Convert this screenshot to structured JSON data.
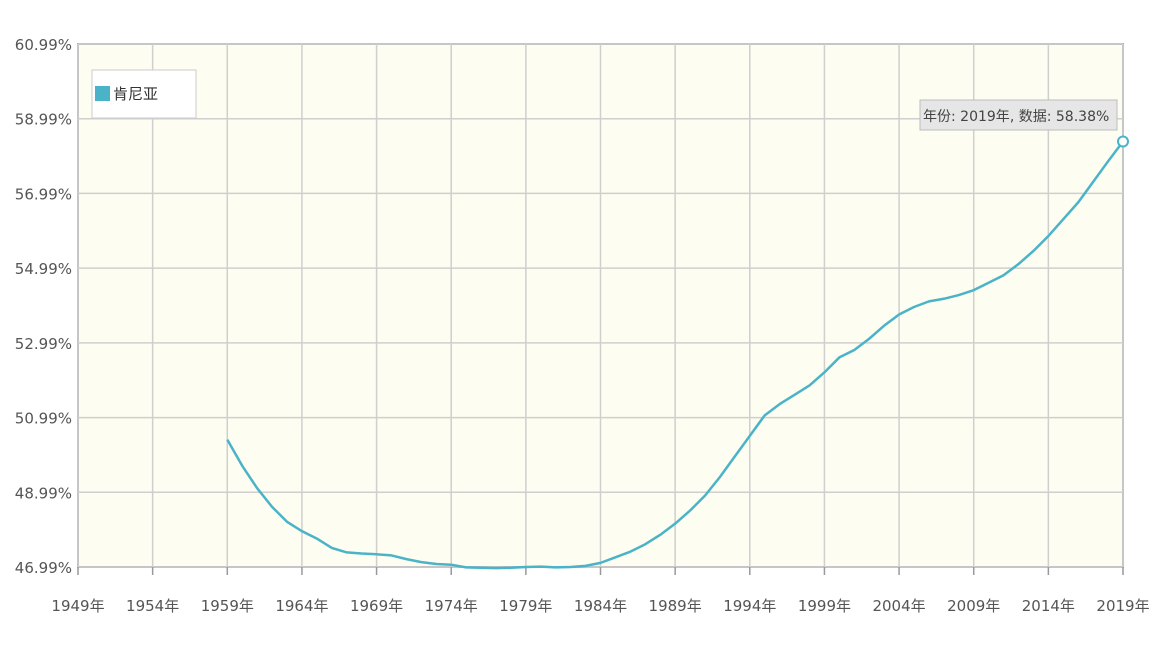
{
  "chart_data": {
    "type": "line",
    "x_unit": "年",
    "x_tick_labels": [
      "1949年",
      "1954年",
      "1959年",
      "1964年",
      "1969年",
      "1974年",
      "1979年",
      "1984年",
      "1989年",
      "1994年",
      "1999年",
      "2004年",
      "2009年",
      "2014年",
      "2019年"
    ],
    "y_tick_labels": [
      "46.99%",
      "48.99%",
      "50.99%",
      "52.99%",
      "54.99%",
      "56.99%",
      "58.99%",
      "60.99%"
    ],
    "xlim": [
      1949,
      2019
    ],
    "ylim": [
      46.99,
      60.99
    ],
    "grid": true,
    "legend": {
      "position": "top-left",
      "entries": [
        "肯尼亚"
      ]
    },
    "series": [
      {
        "name": "肯尼亚",
        "color": "#4bb3c8",
        "x": [
          1959,
          1960,
          1961,
          1962,
          1963,
          1964,
          1965,
          1966,
          1967,
          1968,
          1969,
          1970,
          1971,
          1972,
          1973,
          1974,
          1975,
          1976,
          1977,
          1978,
          1979,
          1980,
          1981,
          1982,
          1983,
          1984,
          1985,
          1986,
          1987,
          1988,
          1989,
          1990,
          1991,
          1992,
          1993,
          1994,
          1995,
          1996,
          1997,
          1998,
          1999,
          2000,
          2001,
          2002,
          2003,
          2004,
          2005,
          2006,
          2007,
          2008,
          2009,
          2010,
          2011,
          2012,
          2013,
          2014,
          2015,
          2016,
          2017,
          2018,
          2019
        ],
        "y": [
          50.4,
          49.7,
          49.1,
          48.6,
          48.2,
          47.95,
          47.75,
          47.5,
          47.38,
          47.35,
          47.33,
          47.3,
          47.2,
          47.12,
          47.07,
          47.05,
          46.98,
          46.97,
          46.96,
          46.97,
          46.99,
          47.0,
          46.98,
          46.99,
          47.02,
          47.1,
          47.25,
          47.4,
          47.6,
          47.85,
          48.15,
          48.5,
          48.9,
          49.4,
          49.95,
          50.5,
          51.05,
          51.35,
          51.6,
          51.85,
          52.2,
          52.6,
          52.8,
          53.1,
          53.45,
          53.75,
          53.95,
          54.1,
          54.17,
          54.27,
          54.4,
          54.6,
          54.8,
          55.1,
          55.45,
          55.85,
          56.3,
          56.75,
          57.3,
          57.85,
          58.38
        ]
      }
    ],
    "tooltip": {
      "year_label": "年份",
      "value_label": "数据",
      "year": "2019年",
      "value": "58.38%"
    }
  }
}
